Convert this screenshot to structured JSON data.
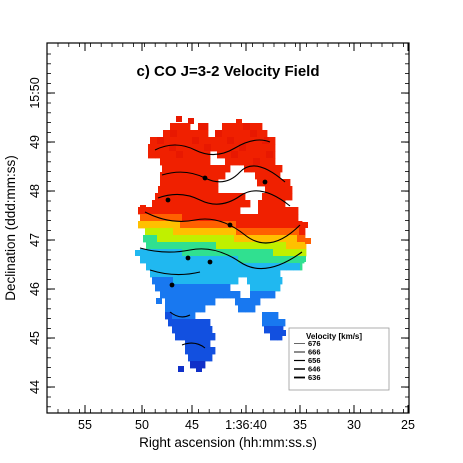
{
  "chart_data": {
    "type": "heatmap",
    "title": "c) CO J=3-2 Velocity Field",
    "xlabel": "Right ascension (hh:mm:ss.s)",
    "ylabel": "Declination (ddd:mm:ss)",
    "x_tick_labels": [
      "55",
      "50",
      "45",
      "1:36:40",
      "35",
      "30",
      "25"
    ],
    "y_tick_labels": [
      "44",
      "45",
      "46",
      "47",
      "48",
      "49",
      "15:50"
    ],
    "colorscale": [
      "#1030d0",
      "#1a70f0",
      "#20c0f0",
      "#40e0a0",
      "#c0f000",
      "#ffd000",
      "#ff7000",
      "#f02000"
    ],
    "legend": {
      "title": "Velocity [km/s]",
      "entries": [
        "676",
        "666",
        "656",
        "646",
        "636"
      ]
    },
    "velocity_range_kms": [
      636,
      676
    ]
  }
}
